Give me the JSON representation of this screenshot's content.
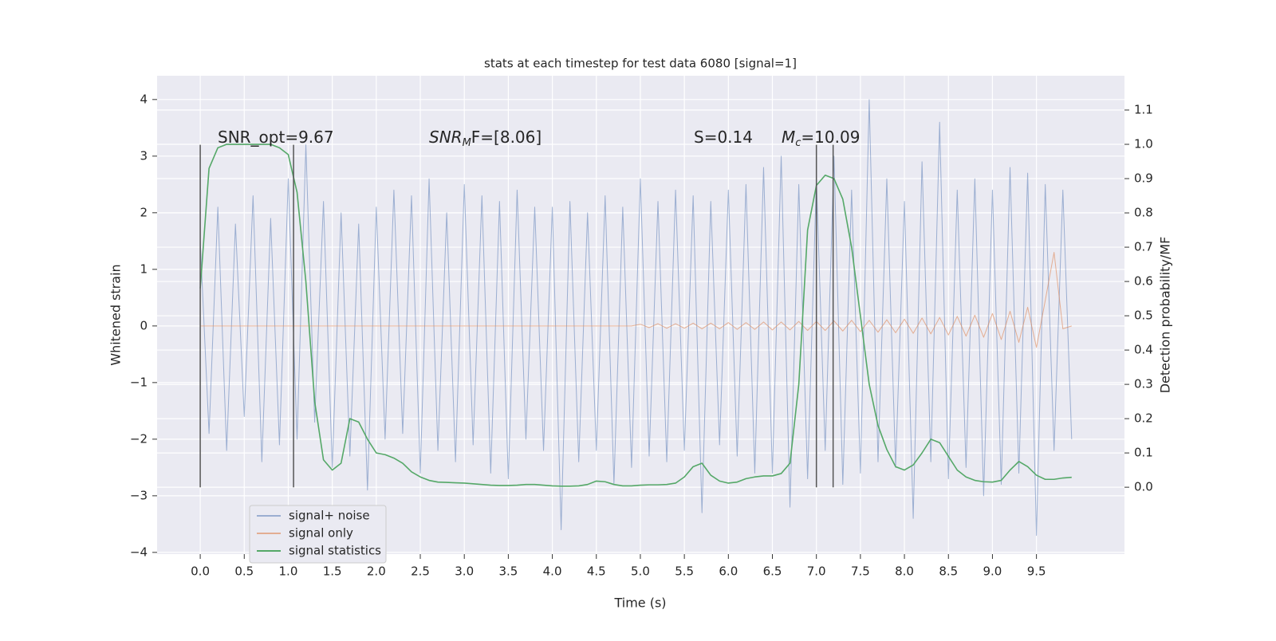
{
  "chart_data": {
    "type": "line",
    "title": "stats at each timestep for test data 6080 [signal=1]",
    "xlabel": "Time (s)",
    "ylabel": "Whitened strain",
    "y2label": "Detection probability/MF",
    "x": [
      0.0,
      0.1,
      0.2,
      0.3,
      0.4,
      0.5,
      0.6,
      0.7,
      0.8,
      0.9,
      1.0,
      1.1,
      1.2,
      1.3,
      1.4,
      1.5,
      1.6,
      1.7,
      1.8,
      1.9,
      2.0,
      2.1,
      2.2,
      2.3,
      2.4,
      2.5,
      2.6,
      2.7,
      2.8,
      2.9,
      3.0,
      3.1,
      3.2,
      3.3,
      3.4,
      3.5,
      3.6,
      3.7,
      3.8,
      3.9,
      4.0,
      4.1,
      4.2,
      4.3,
      4.4,
      4.5,
      4.6,
      4.7,
      4.8,
      4.9,
      5.0,
      5.1,
      5.2,
      5.3,
      5.4,
      5.5,
      5.6,
      5.7,
      5.8,
      5.9,
      6.0,
      6.1,
      6.2,
      6.3,
      6.4,
      6.5,
      6.6,
      6.7,
      6.8,
      6.9,
      7.0,
      7.1,
      7.2,
      7.3,
      7.4,
      7.5,
      7.6,
      7.7,
      7.8,
      7.9,
      8.0,
      8.1,
      8.2,
      8.3,
      8.4,
      8.5,
      8.6,
      8.7,
      8.8,
      8.9,
      9.0,
      9.1,
      9.2,
      9.3,
      9.4,
      9.5,
      9.6,
      9.7,
      9.8,
      9.9
    ],
    "series": [
      {
        "name": "signal+ noise",
        "color": "#4c72b0",
        "values": [
          1.5,
          -1.9,
          2.1,
          -2.2,
          1.8,
          -1.6,
          2.3,
          -2.4,
          1.9,
          -2.1,
          2.6,
          -2.0,
          3.2,
          -1.7,
          2.2,
          -2.5,
          2.0,
          -2.3,
          1.8,
          -2.9,
          2.1,
          -2.0,
          2.4,
          -1.9,
          2.3,
          -2.6,
          2.6,
          -2.2,
          2.0,
          -2.4,
          2.5,
          -2.1,
          2.3,
          -2.6,
          2.2,
          -2.7,
          2.4,
          -2.0,
          2.1,
          -2.2,
          2.1,
          -3.6,
          2.2,
          -2.4,
          2.0,
          -2.2,
          2.3,
          -2.8,
          2.1,
          -2.5,
          2.6,
          -2.3,
          2.2,
          -2.4,
          2.4,
          -2.2,
          2.3,
          -3.3,
          2.2,
          -2.1,
          2.4,
          -2.3,
          2.5,
          -2.6,
          2.8,
          -2.6,
          3.0,
          -3.2,
          2.5,
          -2.7,
          2.6,
          -2.2,
          3.0,
          -2.8,
          2.4,
          -2.6,
          4.0,
          -2.4,
          2.6,
          -2.5,
          2.2,
          -3.4,
          2.9,
          -2.4,
          3.6,
          -2.7,
          2.4,
          -2.5,
          2.6,
          -3.0,
          2.4,
          -2.8,
          2.8,
          -2.6,
          2.7,
          -3.7,
          2.5,
          -2.2,
          2.4,
          -2.0
        ]
      },
      {
        "name": "signal only",
        "color": "#dd8452",
        "values": [
          0,
          0,
          0,
          0,
          0,
          0,
          0,
          0,
          0,
          0,
          0,
          0,
          0,
          0,
          0,
          0,
          0,
          0,
          0,
          0,
          0,
          0,
          0,
          0,
          0,
          0,
          0,
          0,
          0,
          0,
          0,
          0,
          0,
          0,
          0,
          0,
          0,
          0,
          0,
          0,
          0,
          0,
          0,
          0,
          0,
          0,
          0,
          0,
          0,
          0,
          0.03,
          -0.03,
          0.04,
          -0.04,
          0.04,
          -0.04,
          0.05,
          -0.05,
          0.05,
          -0.05,
          0.06,
          -0.06,
          0.06,
          -0.06,
          0.07,
          -0.07,
          0.07,
          -0.07,
          0.08,
          -0.08,
          0.08,
          -0.08,
          0.09,
          -0.09,
          0.1,
          -0.1,
          0.1,
          -0.11,
          0.11,
          -0.12,
          0.12,
          -0.13,
          0.14,
          -0.14,
          0.15,
          -0.16,
          0.17,
          -0.18,
          0.19,
          -0.2,
          0.22,
          -0.24,
          0.26,
          -0.29,
          0.33,
          -0.38,
          0.45,
          1.3,
          -0.05,
          0
        ]
      },
      {
        "name": "signal statistics",
        "color": "#55a868",
        "axis": "y2",
        "values": [
          0.58,
          0.93,
          0.99,
          1.0,
          1.0,
          1.0,
          1.0,
          1.0,
          1.0,
          0.99,
          0.97,
          0.86,
          0.6,
          0.25,
          0.08,
          0.05,
          0.07,
          0.2,
          0.19,
          0.14,
          0.1,
          0.095,
          0.085,
          0.07,
          0.045,
          0.03,
          0.02,
          0.015,
          0.014,
          0.013,
          0.012,
          0.01,
          0.008,
          0.006,
          0.005,
          0.005,
          0.006,
          0.008,
          0.008,
          0.006,
          0.004,
          0.003,
          0.003,
          0.004,
          0.008,
          0.018,
          0.016,
          0.008,
          0.004,
          0.004,
          0.006,
          0.007,
          0.007,
          0.008,
          0.012,
          0.03,
          0.06,
          0.07,
          0.035,
          0.018,
          0.012,
          0.015,
          0.025,
          0.03,
          0.033,
          0.033,
          0.04,
          0.07,
          0.3,
          0.75,
          0.88,
          0.91,
          0.9,
          0.84,
          0.7,
          0.5,
          0.3,
          0.18,
          0.11,
          0.06,
          0.05,
          0.065,
          0.1,
          0.14,
          0.13,
          0.09,
          0.05,
          0.03,
          0.02,
          0.016,
          0.015,
          0.02,
          0.05,
          0.075,
          0.06,
          0.035,
          0.023,
          0.023,
          0.027,
          0.029
        ]
      }
    ],
    "vlines": {
      "x": [
        0.0,
        1.06,
        7.0,
        7.19
      ],
      "ymin": -2.85,
      "ymax": 3.2,
      "color": "#555555"
    },
    "annotations": [
      {
        "parts": [
          "SNR_opt=9.67"
        ]
      },
      {
        "parts": [
          "SNR",
          "M",
          "F=[8.06]"
        ]
      },
      {
        "parts": [
          "S=0.14"
        ]
      },
      {
        "parts": [
          "M",
          "c",
          "=10.09"
        ]
      }
    ],
    "xlim": [
      -0.49,
      10.5
    ],
    "ylim": [
      -4.03,
      4.42
    ],
    "y2lim": [
      -0.195,
      1.2
    ],
    "xticks": [
      {
        "value": 0,
        "label": "0.0"
      },
      0.5,
      {
        "value": 1,
        "label": "1.0"
      },
      1.5,
      {
        "value": 2,
        "label": "2.0"
      },
      2.5,
      {
        "value": 3,
        "label": "3.0"
      },
      3.5,
      {
        "value": 4,
        "label": "4.0"
      },
      4.5,
      {
        "value": 5,
        "label": "5.0"
      },
      5.5,
      {
        "value": 6,
        "label": "6.0"
      },
      6.5,
      {
        "value": 7,
        "label": "7.0"
      },
      7.5,
      {
        "value": 8,
        "label": "8.0"
      },
      8.5,
      {
        "value": 9,
        "label": "9.0"
      },
      9.5
    ],
    "yticks": [
      {
        "value": -4,
        "label": "−4"
      },
      {
        "value": -3,
        "label": "−3"
      },
      {
        "value": -2,
        "label": "−2"
      },
      {
        "value": -1,
        "label": "−1"
      },
      0,
      1,
      2,
      3,
      4
    ],
    "y2ticks": [
      {
        "value": 0,
        "label": "0.0"
      },
      0.1,
      0.2,
      0.3,
      0.4,
      0.5,
      0.6,
      0.7,
      0.8,
      0.9,
      {
        "value": 1,
        "label": "1.0"
      },
      1.1
    ],
    "grid": true,
    "legend": "lower left"
  }
}
